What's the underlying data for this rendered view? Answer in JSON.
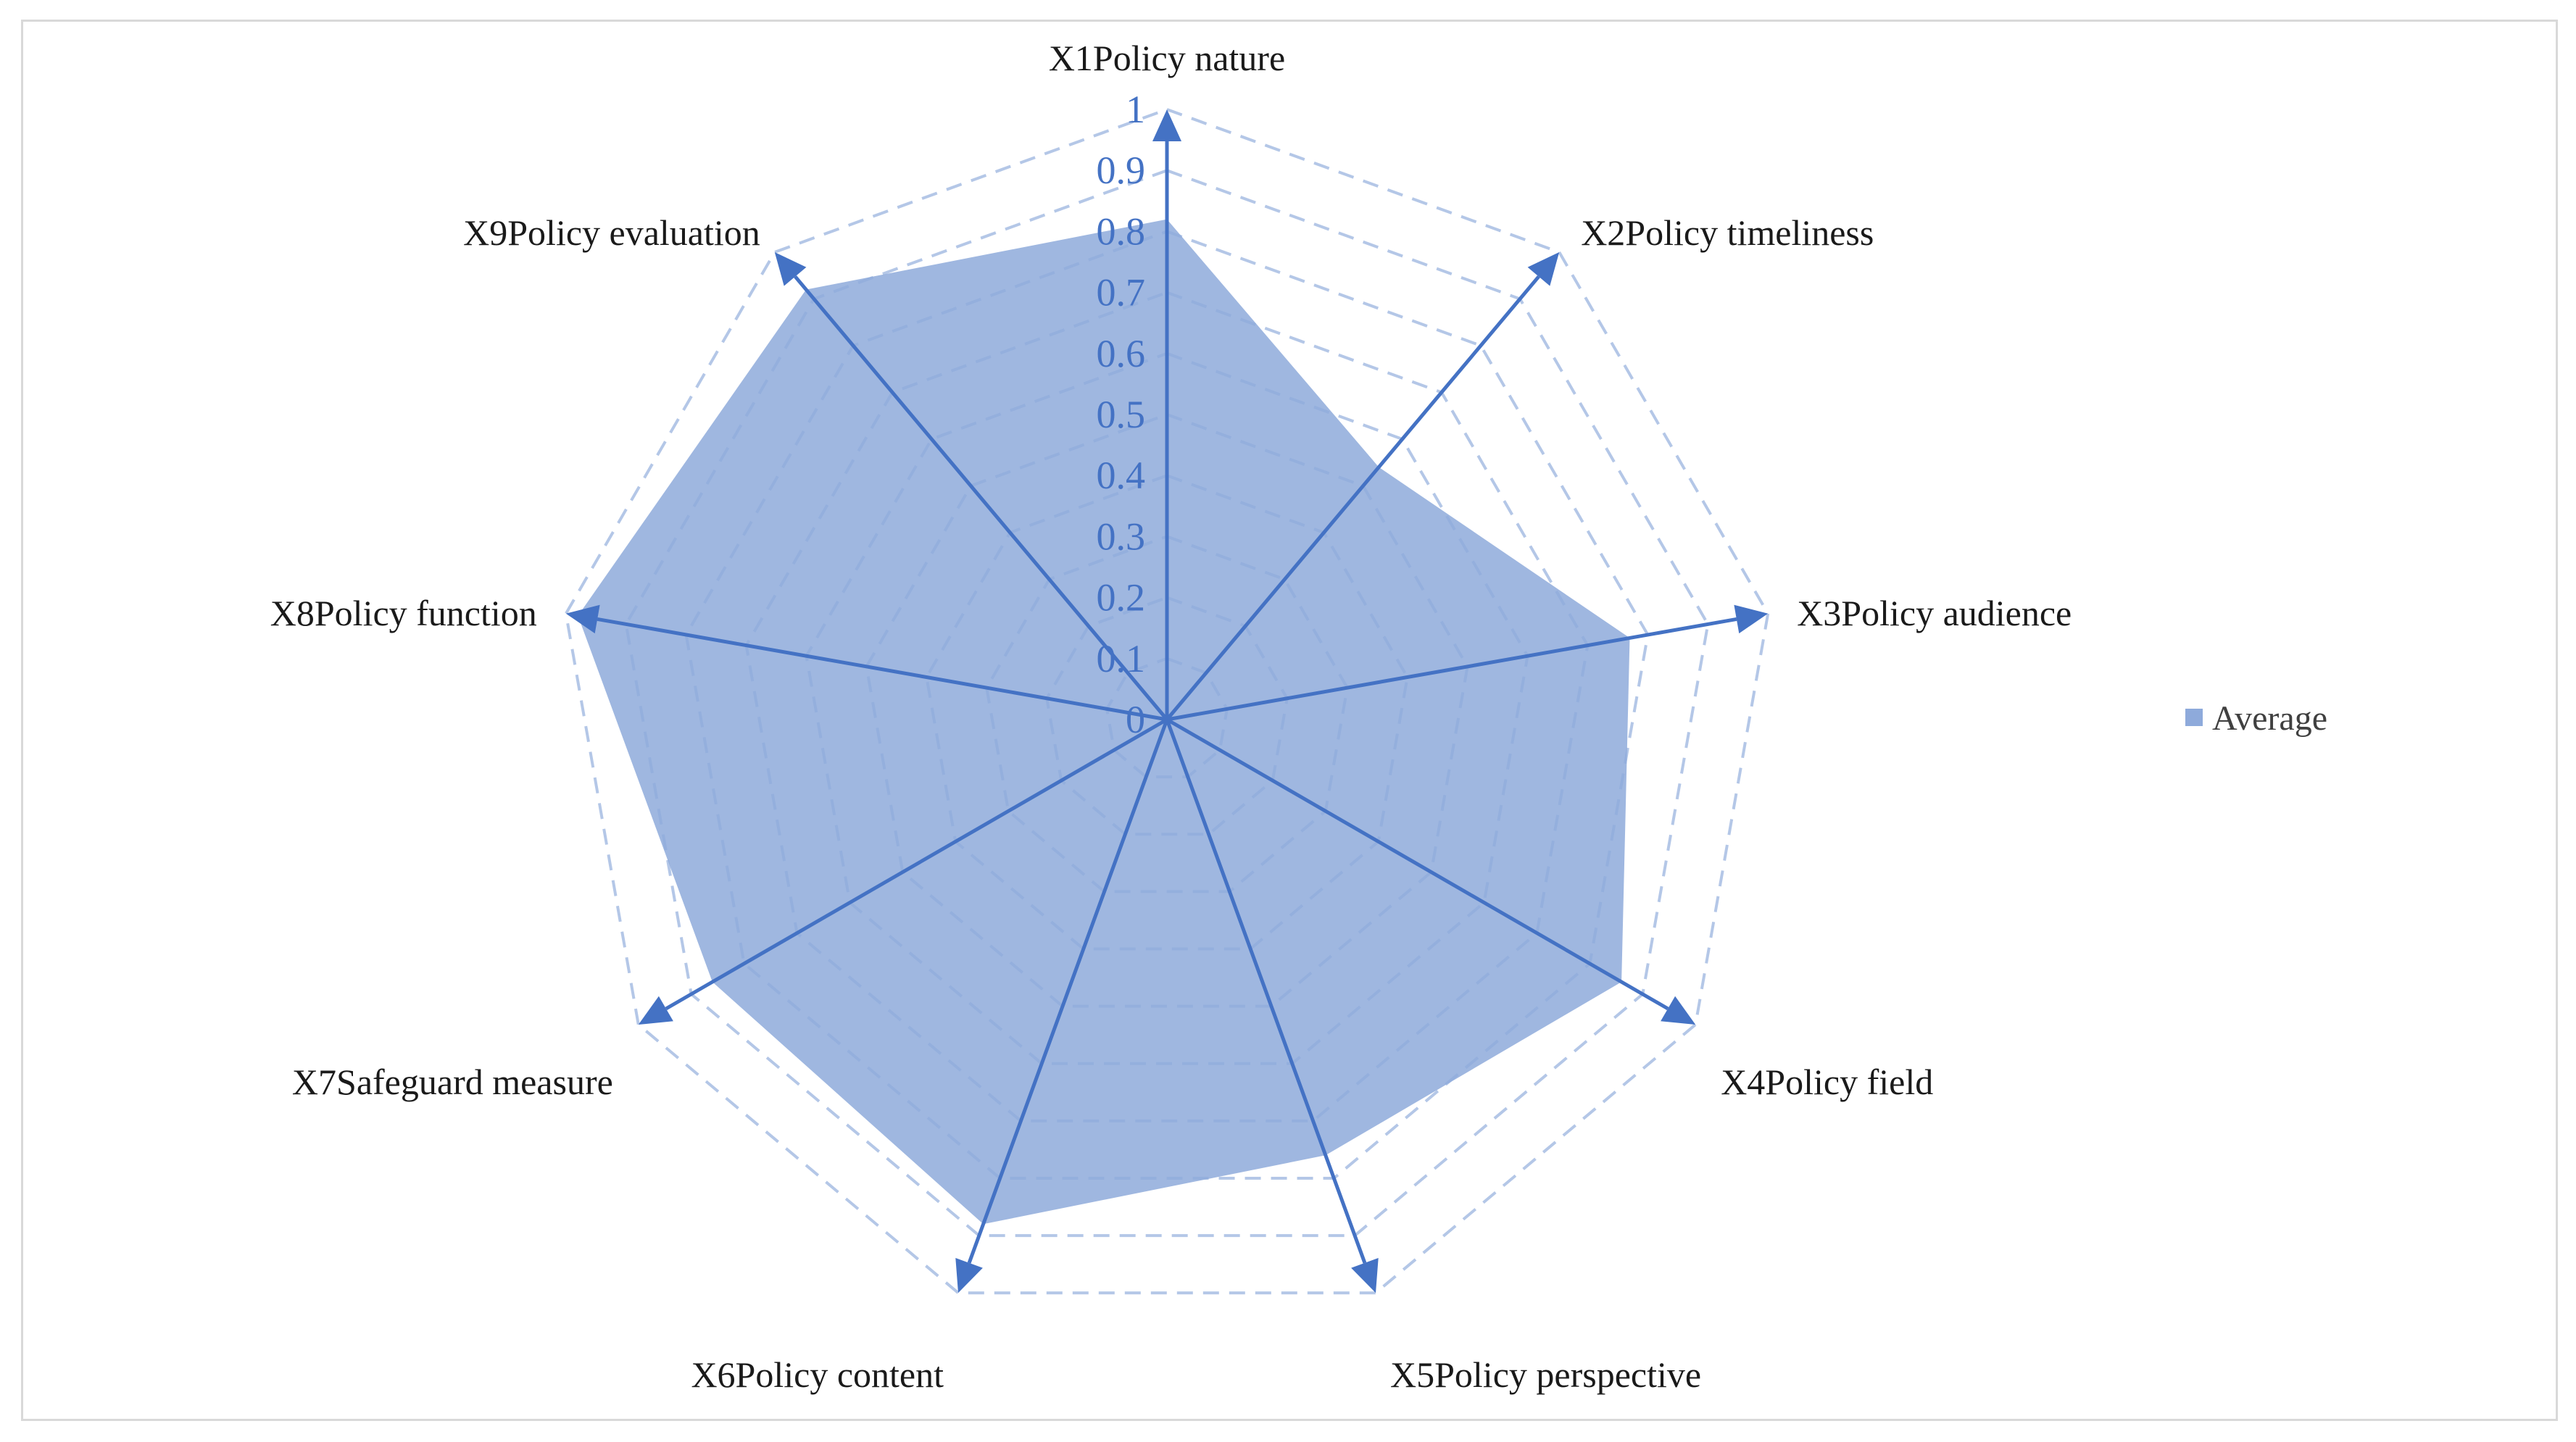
{
  "chart_data": {
    "type": "radar",
    "categories": [
      "X1Policy nature",
      "X2Policy timeliness",
      "X3Policy audience",
      "X4Policy field",
      "X5Policy perspective",
      "X6Policy content",
      "X7Safeguard measure",
      "X8Policy function",
      "X9Policy evaluation"
    ],
    "series": [
      {
        "name": "Average",
        "values": [
          0.82,
          0.54,
          0.77,
          0.86,
          0.76,
          0.88,
          0.86,
          0.98,
          0.92
        ],
        "color": "#8eaadb"
      }
    ],
    "rlim": [
      0,
      1
    ],
    "rticks": [
      "0",
      "0.1",
      "0.2",
      "0.3",
      "0.4",
      "0.5",
      "0.6",
      "0.7",
      "0.8",
      "0.9",
      "1"
    ],
    "grid": "dashed",
    "grid_color": "#b4c7e7",
    "axis_color": "#4472c4",
    "legend_position": "right"
  }
}
